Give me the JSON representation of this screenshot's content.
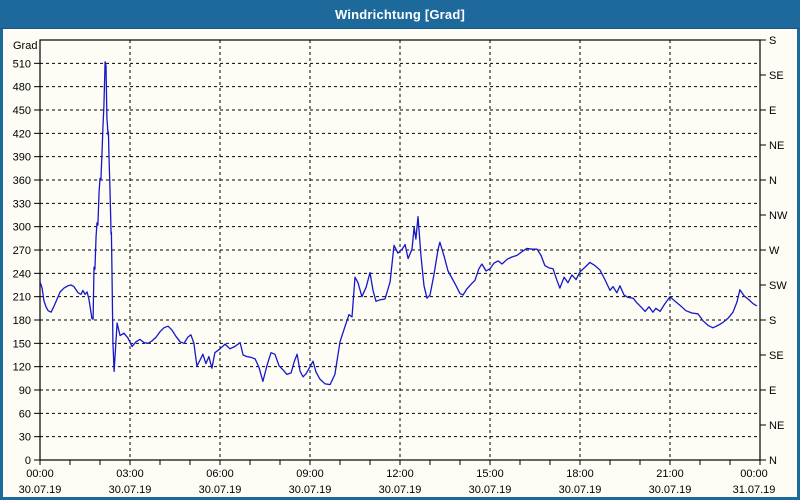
{
  "window": {
    "title": "Windrichtung [Grad]",
    "colors": {
      "title_bar": "#1e699b",
      "frame": "#1e699b",
      "panel_background": "#fdfdf6",
      "plot_border": "#000000",
      "gridline": "#000000",
      "line": "#1717c9",
      "title_text": "#ffffff",
      "axis_text": "#000000"
    }
  },
  "chart_data": {
    "type": "line",
    "title": "Windrichtung [Grad]",
    "grid": "dashed, horizontal every 30 Grad, vertical every 3 hours",
    "legend_position": "none",
    "y_axis_left": {
      "unit_label": "Grad",
      "min": 0,
      "max": 540,
      "tick_interval": 30,
      "tick_labels": [
        "0",
        "30",
        "60",
        "90",
        "120",
        "150",
        "180",
        "210",
        "240",
        "270",
        "300",
        "330",
        "360",
        "390",
        "420",
        "450",
        "480",
        "510"
      ]
    },
    "y_axis_right": {
      "tick_interval": 45,
      "labels": [
        {
          "grad": 540,
          "label": "S"
        },
        {
          "grad": 495,
          "label": "SE"
        },
        {
          "grad": 450,
          "label": "E"
        },
        {
          "grad": 405,
          "label": "NE"
        },
        {
          "grad": 360,
          "label": "N"
        },
        {
          "grad": 315,
          "label": "NW"
        },
        {
          "grad": 270,
          "label": "W"
        },
        {
          "grad": 225,
          "label": "SW"
        },
        {
          "grad": 180,
          "label": "S"
        },
        {
          "grad": 135,
          "label": "SE"
        },
        {
          "grad": 90,
          "label": "E"
        },
        {
          "grad": 45,
          "label": "NE"
        },
        {
          "grad": 0,
          "label": "N"
        }
      ]
    },
    "x_axis": {
      "range_hours": [
        0,
        24
      ],
      "minor_tick_interval_hours": 1,
      "gridline_interval_hours": 3,
      "labels": [
        {
          "hour": 0,
          "time": "00:00",
          "date": "30.07.19"
        },
        {
          "hour": 3,
          "time": "03:00",
          "date": "30.07.19"
        },
        {
          "hour": 6,
          "time": "06:00",
          "date": "30.07.19"
        },
        {
          "hour": 9,
          "time": "09:00",
          "date": "30.07.19"
        },
        {
          "hour": 12,
          "time": "12:00",
          "date": "30.07.19"
        },
        {
          "hour": 15,
          "time": "15:00",
          "date": "30.07.19"
        },
        {
          "hour": 18,
          "time": "18:00",
          "date": "30.07.19"
        },
        {
          "hour": 21,
          "time": "21:00",
          "date": "30.07.19"
        },
        {
          "hour": 24,
          "time": "00:00",
          "date": "31.07.19"
        }
      ]
    },
    "series": [
      {
        "name": "Windrichtung",
        "color": "#1717c9",
        "points": [
          [
            0.0,
            229
          ],
          [
            0.07,
            221
          ],
          [
            0.13,
            205
          ],
          [
            0.2,
            197
          ],
          [
            0.27,
            192
          ],
          [
            0.37,
            190
          ],
          [
            0.47,
            198
          ],
          [
            0.57,
            207
          ],
          [
            0.67,
            216
          ],
          [
            0.8,
            221
          ],
          [
            0.93,
            224
          ],
          [
            1.03,
            225
          ],
          [
            1.13,
            223
          ],
          [
            1.27,
            215
          ],
          [
            1.37,
            213
          ],
          [
            1.43,
            218
          ],
          [
            1.5,
            213
          ],
          [
            1.57,
            216
          ],
          [
            1.63,
            207
          ],
          [
            1.73,
            182
          ],
          [
            1.77,
            181
          ],
          [
            1.8,
            248
          ],
          [
            1.83,
            245
          ],
          [
            1.87,
            288
          ],
          [
            1.9,
            305
          ],
          [
            1.93,
            302
          ],
          [
            1.97,
            345
          ],
          [
            2.0,
            362
          ],
          [
            2.03,
            360
          ],
          [
            2.07,
            398
          ],
          [
            2.1,
            430
          ],
          [
            2.13,
            455
          ],
          [
            2.17,
            512
          ],
          [
            2.2,
            507
          ],
          [
            2.23,
            440
          ],
          [
            2.27,
            418
          ],
          [
            2.28,
            422
          ],
          [
            2.3,
            390
          ],
          [
            2.33,
            352
          ],
          [
            2.37,
            290
          ],
          [
            2.38,
            293
          ],
          [
            2.4,
            240
          ],
          [
            2.43,
            152
          ],
          [
            2.47,
            114
          ],
          [
            2.57,
            176
          ],
          [
            2.67,
            160
          ],
          [
            2.8,
            163
          ],
          [
            2.93,
            157
          ],
          [
            3.07,
            146
          ],
          [
            3.2,
            152
          ],
          [
            3.33,
            155
          ],
          [
            3.47,
            151
          ],
          [
            3.6,
            150
          ],
          [
            3.73,
            153
          ],
          [
            3.87,
            158
          ],
          [
            4.0,
            165
          ],
          [
            4.13,
            170
          ],
          [
            4.27,
            172
          ],
          [
            4.4,
            167
          ],
          [
            4.53,
            159
          ],
          [
            4.67,
            152
          ],
          [
            4.8,
            150
          ],
          [
            4.93,
            158
          ],
          [
            5.03,
            161
          ],
          [
            5.13,
            150
          ],
          [
            5.23,
            121
          ],
          [
            5.33,
            128
          ],
          [
            5.43,
            136
          ],
          [
            5.53,
            124
          ],
          [
            5.63,
            133
          ],
          [
            5.73,
            118
          ],
          [
            5.83,
            138
          ],
          [
            6.0,
            143
          ],
          [
            6.17,
            149
          ],
          [
            6.33,
            143
          ],
          [
            6.5,
            146
          ],
          [
            6.67,
            151
          ],
          [
            6.77,
            135
          ],
          [
            6.9,
            133
          ],
          [
            7.03,
            132
          ],
          [
            7.17,
            130
          ],
          [
            7.3,
            119
          ],
          [
            7.43,
            101
          ],
          [
            7.57,
            122
          ],
          [
            7.7,
            138
          ],
          [
            7.83,
            136
          ],
          [
            7.97,
            121
          ],
          [
            8.1,
            116
          ],
          [
            8.23,
            110
          ],
          [
            8.37,
            112
          ],
          [
            8.47,
            126
          ],
          [
            8.57,
            136
          ],
          [
            8.67,
            114
          ],
          [
            8.77,
            107
          ],
          [
            8.87,
            111
          ],
          [
            9.0,
            120
          ],
          [
            9.1,
            127
          ],
          [
            9.2,
            113
          ],
          [
            9.33,
            104
          ],
          [
            9.5,
            98
          ],
          [
            9.67,
            97
          ],
          [
            9.83,
            110
          ],
          [
            10.0,
            152
          ],
          [
            10.17,
            172
          ],
          [
            10.3,
            187
          ],
          [
            10.4,
            184
          ],
          [
            10.5,
            235
          ],
          [
            10.6,
            228
          ],
          [
            10.73,
            210
          ],
          [
            10.87,
            222
          ],
          [
            11.0,
            241
          ],
          [
            11.1,
            218
          ],
          [
            11.2,
            204
          ],
          [
            11.33,
            206
          ],
          [
            11.5,
            207
          ],
          [
            11.67,
            229
          ],
          [
            11.8,
            276
          ],
          [
            11.93,
            266
          ],
          [
            12.07,
            271
          ],
          [
            12.17,
            277
          ],
          [
            12.27,
            259
          ],
          [
            12.4,
            271
          ],
          [
            12.47,
            299
          ],
          [
            12.53,
            284
          ],
          [
            12.6,
            313
          ],
          [
            12.7,
            262
          ],
          [
            12.8,
            224
          ],
          [
            12.9,
            208
          ],
          [
            13.0,
            212
          ],
          [
            13.13,
            238
          ],
          [
            13.27,
            271
          ],
          [
            13.33,
            280
          ],
          [
            13.47,
            262
          ],
          [
            13.6,
            243
          ],
          [
            13.73,
            234
          ],
          [
            13.87,
            224
          ],
          [
            14.0,
            214
          ],
          [
            14.1,
            212
          ],
          [
            14.23,
            220
          ],
          [
            14.37,
            226
          ],
          [
            14.5,
            231
          ],
          [
            14.63,
            246
          ],
          [
            14.73,
            252
          ],
          [
            14.87,
            243
          ],
          [
            15.0,
            246
          ],
          [
            15.13,
            253
          ],
          [
            15.27,
            256
          ],
          [
            15.4,
            252
          ],
          [
            15.57,
            258
          ],
          [
            15.73,
            261
          ],
          [
            15.9,
            263
          ],
          [
            16.07,
            268
          ],
          [
            16.23,
            272
          ],
          [
            16.4,
            271
          ],
          [
            16.57,
            271
          ],
          [
            16.7,
            263
          ],
          [
            16.83,
            250
          ],
          [
            16.97,
            247
          ],
          [
            17.1,
            246
          ],
          [
            17.23,
            231
          ],
          [
            17.33,
            221
          ],
          [
            17.47,
            235
          ],
          [
            17.6,
            228
          ],
          [
            17.73,
            238
          ],
          [
            17.87,
            232
          ],
          [
            18.0,
            242
          ],
          [
            18.17,
            248
          ],
          [
            18.33,
            254
          ],
          [
            18.5,
            250
          ],
          [
            18.67,
            244
          ],
          [
            18.83,
            232
          ],
          [
            19.0,
            218
          ],
          [
            19.1,
            223
          ],
          [
            19.23,
            215
          ],
          [
            19.33,
            224
          ],
          [
            19.47,
            212
          ],
          [
            19.6,
            209
          ],
          [
            19.77,
            208
          ],
          [
            19.9,
            202
          ],
          [
            20.03,
            197
          ],
          [
            20.17,
            191
          ],
          [
            20.3,
            197
          ],
          [
            20.43,
            190
          ],
          [
            20.53,
            195
          ],
          [
            20.67,
            191
          ],
          [
            20.83,
            201
          ],
          [
            21.0,
            210
          ],
          [
            21.17,
            204
          ],
          [
            21.33,
            199
          ],
          [
            21.53,
            192
          ],
          [
            21.73,
            189
          ],
          [
            21.93,
            188
          ],
          [
            22.1,
            179
          ],
          [
            22.27,
            173
          ],
          [
            22.43,
            170
          ],
          [
            22.6,
            173
          ],
          [
            22.77,
            177
          ],
          [
            22.93,
            182
          ],
          [
            23.1,
            190
          ],
          [
            23.23,
            203
          ],
          [
            23.33,
            219
          ],
          [
            23.47,
            211
          ],
          [
            23.6,
            207
          ],
          [
            23.77,
            201
          ],
          [
            23.9,
            198
          ]
        ]
      }
    ]
  }
}
